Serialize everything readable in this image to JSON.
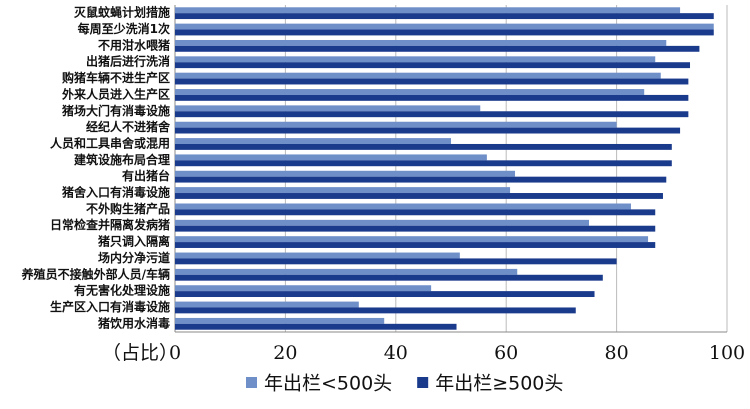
{
  "chart_data": {
    "type": "hbar",
    "x_label": "（占比）",
    "categories": [
      "灭鼠蚊蝇计划措施",
      "每周至少洗消1次",
      "不用泔水喂猪",
      "出猪后进行洗消",
      "购猪车辆不进生产区",
      "外来人员进入生产区",
      "猪场大门有消毒设施",
      "经纪人不进猪舍",
      "人员和工具串舍或混用",
      "建筑设施布局合理",
      "有出猪台",
      "猪舍入口有消毒设施",
      "不外购生猪产品",
      "日常检查并隔离发病猪",
      "猪只调入隔离",
      "场内分净污道",
      "养殖员不接触外部人员/车辆",
      "有无害化处理设施",
      "生产区入口有消毒设施",
      "猪饮用水消毒"
    ],
    "series": [
      {
        "name": "年出栏<500头",
        "color": "#6f8fc9",
        "values": [
          91.5,
          97.6,
          89,
          87,
          88,
          85,
          55.3,
          80,
          50,
          56.5,
          61.6,
          60.7,
          82.6,
          75,
          85.7,
          51.6,
          62,
          46.4,
          33.3,
          37.9
        ]
      },
      {
        "name": "年出栏≥500头",
        "color": "#1a3a8c",
        "values": [
          97.6,
          97.6,
          95,
          93.3,
          93,
          93,
          93,
          91.5,
          90,
          90,
          89,
          88.4,
          87,
          87,
          87,
          80,
          77.5,
          76,
          72.6,
          51
        ]
      }
    ],
    "xlim": [
      0,
      100
    ],
    "xticks": [
      0,
      20,
      40,
      60,
      80,
      100
    ],
    "grid": true,
    "legend": "bottom"
  }
}
